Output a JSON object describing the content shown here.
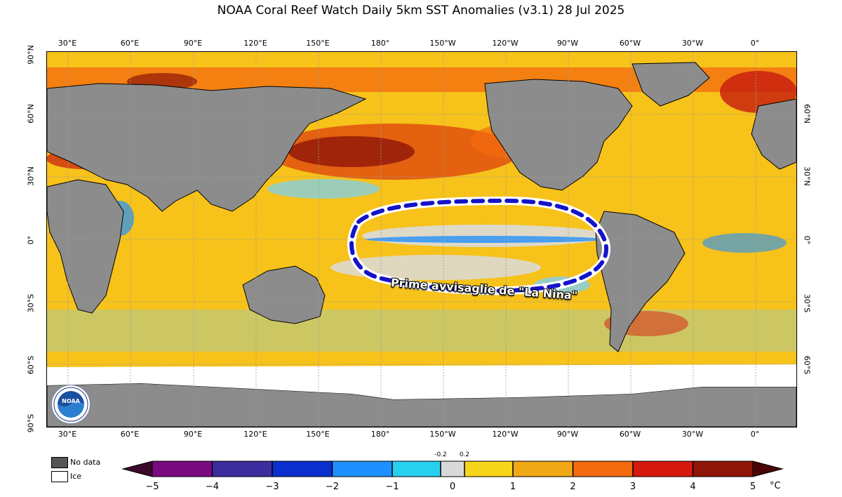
{
  "title": "NOAA Coral Reef Watch Daily 5km SST Anomalies  (v3.1)   28 Jul 2025",
  "annotation": "Prime avvisaglie de \"La Nina\"",
  "logo_text": "NOAA",
  "lon_labels": [
    "30°E",
    "60°E",
    "90°E",
    "120°E",
    "150°E",
    "180°",
    "150°W",
    "120°W",
    "90°W",
    "60°W",
    "30°W",
    "0°"
  ],
  "lat_labels_left": [
    "90°N",
    "60°N",
    "30°N",
    "0°",
    "30°S",
    "60°S",
    "90°S"
  ],
  "lat_labels_right": [
    "60°N",
    "30°N",
    "0°",
    "30°S",
    "60°S"
  ],
  "legend": {
    "no_data": "No data",
    "ice": "Ice"
  },
  "colorbar": {
    "ticks": [
      "−5",
      "−4",
      "−3",
      "−2",
      "−1",
      "0",
      "1",
      "2",
      "3",
      "4",
      "5"
    ],
    "small_ticks": [
      "-0.2",
      "0.2"
    ],
    "unit": "°C",
    "colors": {
      "neg5": "#3b0a2a",
      "neg4": "#7a0a80",
      "neg3": "#3c2d9e",
      "neg2": "#0a2fcc",
      "neg1": "#1e90ff",
      "neutral": "#d9d9d9",
      "pos1": "#f7d51a",
      "pos2": "#f0a816",
      "pos3": "#f36a0f",
      "pos4": "#d6190f",
      "pos5": "#4a0606"
    }
  },
  "colors": {
    "land": "#8c8c8c",
    "ice": "#ffffff",
    "ocean_warm": "#f7c21a",
    "annotation_ring": "#1414c8"
  }
}
